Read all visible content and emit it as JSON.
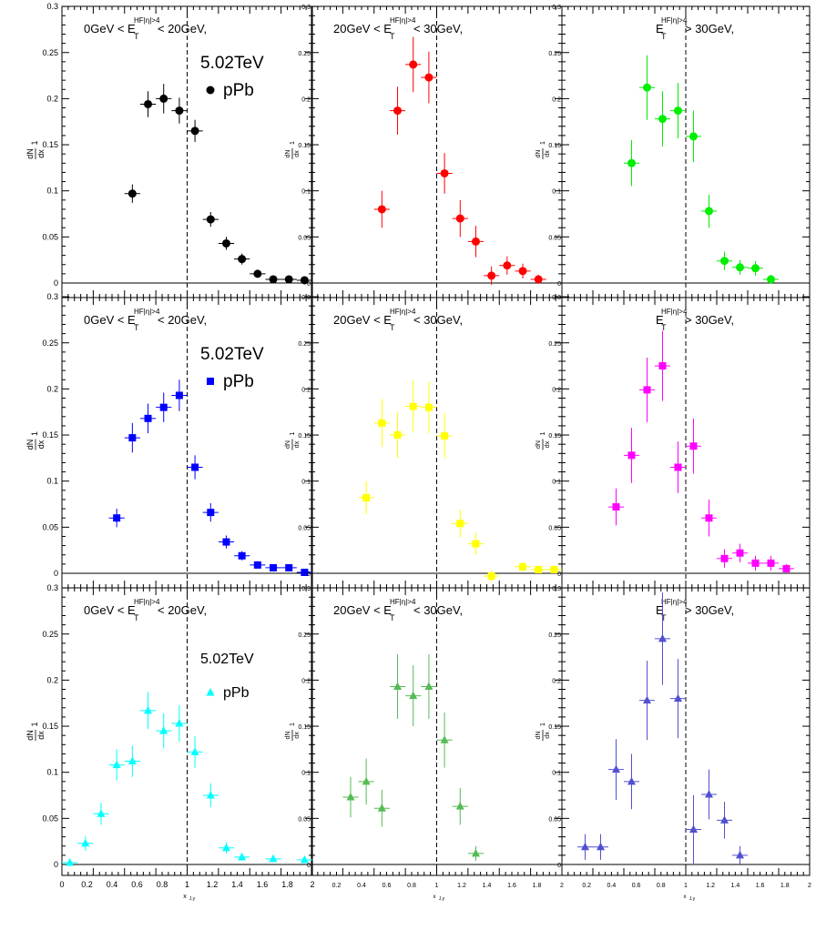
{
  "chart_data": {
    "type": "scatter",
    "layout": "3x3 grid of panels",
    "xlabel": "x",
    "xlabel_sub": "J,γ",
    "ylabel_numerator": "dN",
    "ylabel_denominator": "dx",
    "ylabel_prefix": "1",
    "ylim": [
      0,
      0.3
    ],
    "yticks": [
      "0",
      "0.05",
      "0.1",
      "0.15",
      "0.2",
      "0.25",
      "0.3"
    ],
    "xticks_left": [
      "0",
      "0.2",
      "0.4",
      "0.6",
      "0.8",
      "1",
      "1.2",
      "1.4",
      "1.6",
      "1.8",
      "2"
    ],
    "xticks_inner": [
      "0.2",
      "0.4",
      "0.6",
      "0.8",
      "1",
      "1.2",
      "1.4",
      "1.6",
      "1.8",
      "2"
    ],
    "reference_line_x": 1.0,
    "bin_halfwidth": 0.0625,
    "energy": "5.02TeV",
    "system": "pPb",
    "colors": [
      "#000000",
      "#ff0000",
      "#00ee00",
      "#0000ff",
      "#ffff00",
      "#ff00ff",
      "#00ffff",
      "#55bb55",
      "#5050d0"
    ],
    "panels": [
      {
        "row": 0,
        "col": 0,
        "color": "#000000",
        "marker": "circle",
        "label_pre": "0GeV < E",
        "label_sub": "T",
        "label_sup": "HF|η|>4",
        "label_post": "< 20GeV,",
        "x": [
          0.5625,
          0.6875,
          0.8125,
          0.9375,
          1.0625,
          1.1875,
          1.3125,
          1.4375,
          1.5625,
          1.6875,
          1.8125,
          1.9375
        ],
        "y": [
          0.097,
          0.194,
          0.2,
          0.187,
          0.165,
          0.069,
          0.043,
          0.026,
          0.01,
          0.004,
          0.004,
          0.003
        ],
        "err": [
          0.01,
          0.014,
          0.016,
          0.014,
          0.012,
          0.008,
          0.007,
          0.006,
          0.004,
          0.003,
          0.003,
          0.003
        ]
      },
      {
        "row": 0,
        "col": 1,
        "color": "#ff0000",
        "marker": "circle",
        "label_pre": "20GeV < E",
        "label_sub": "T",
        "label_sup": "HF|η|>4",
        "label_post": "< 30GeV,",
        "x": [
          0.5625,
          0.6875,
          0.8125,
          0.9375,
          1.0625,
          1.1875,
          1.3125,
          1.4375,
          1.5625,
          1.6875,
          1.8125
        ],
        "y": [
          0.08,
          0.187,
          0.237,
          0.223,
          0.119,
          0.07,
          0.045,
          0.008,
          0.019,
          0.013,
          0.004
        ],
        "err": [
          0.02,
          0.026,
          0.03,
          0.028,
          0.022,
          0.02,
          0.017,
          0.01,
          0.01,
          0.008,
          0.005
        ]
      },
      {
        "row": 0,
        "col": 2,
        "color": "#00ee00",
        "marker": "circle",
        "label_pre": "E",
        "label_sub": "T",
        "label_sup": "HF|η|>4",
        "label_post": "> 30GeV,",
        "x": [
          0.5625,
          0.6875,
          0.8125,
          0.9375,
          1.0625,
          1.1875,
          1.3125,
          1.4375,
          1.5625,
          1.6875
        ],
        "y": [
          0.13,
          0.212,
          0.178,
          0.187,
          0.159,
          0.078,
          0.024,
          0.017,
          0.016,
          0.004
        ],
        "err": [
          0.025,
          0.035,
          0.03,
          0.03,
          0.028,
          0.018,
          0.01,
          0.008,
          0.008,
          0.005
        ]
      },
      {
        "row": 1,
        "col": 0,
        "color": "#0000ff",
        "marker": "square",
        "label_pre": "0GeV < E",
        "label_sub": "T",
        "label_sup": "HF|η|>4",
        "label_post": "< 20GeV,",
        "x": [
          0.4375,
          0.5625,
          0.6875,
          0.8125,
          0.9375,
          1.0625,
          1.1875,
          1.3125,
          1.4375,
          1.5625,
          1.6875,
          1.8125,
          1.9375
        ],
        "y": [
          0.06,
          0.147,
          0.168,
          0.18,
          0.193,
          0.115,
          0.066,
          0.034,
          0.019,
          0.009,
          0.006,
          0.006,
          0.001
        ],
        "err": [
          0.01,
          0.016,
          0.016,
          0.016,
          0.017,
          0.013,
          0.01,
          0.007,
          0.005,
          0.004,
          0.003,
          0.003,
          0.002
        ]
      },
      {
        "row": 1,
        "col": 1,
        "color": "#ffff00",
        "marker": "square",
        "label_pre": "20GeV < E",
        "label_sub": "T",
        "label_sup": "HF|η|>4",
        "label_post": "< 30GeV,",
        "x": [
          0.4375,
          0.5625,
          0.6875,
          0.8125,
          0.9375,
          1.0625,
          1.1875,
          1.3125,
          1.4375,
          1.6875,
          1.8125,
          1.9375
        ],
        "y": [
          0.082,
          0.163,
          0.15,
          0.181,
          0.18,
          0.149,
          0.054,
          0.032,
          -0.003,
          0.007,
          0.004,
          0.004
        ],
        "err": [
          0.018,
          0.026,
          0.025,
          0.028,
          0.028,
          0.025,
          0.015,
          0.012,
          0.006,
          0.005,
          0.004,
          0.004
        ]
      },
      {
        "row": 1,
        "col": 2,
        "color": "#ff00ff",
        "marker": "square",
        "label_pre": "E",
        "label_sub": "T",
        "label_sup": "HF|η|>4",
        "label_post": "> 30GeV,",
        "x": [
          0.4375,
          0.5625,
          0.6875,
          0.8125,
          0.9375,
          1.0625,
          1.1875,
          1.3125,
          1.4375,
          1.5625,
          1.6875,
          1.8125
        ],
        "y": [
          0.072,
          0.128,
          0.199,
          0.225,
          0.115,
          0.138,
          0.06,
          0.016,
          0.022,
          0.011,
          0.011,
          0.005
        ],
        "err": [
          0.02,
          0.03,
          0.035,
          0.038,
          0.028,
          0.03,
          0.02,
          0.01,
          0.01,
          0.008,
          0.008,
          0.005
        ]
      },
      {
        "row": 2,
        "col": 0,
        "color": "#00ffff",
        "marker": "triangle",
        "label_pre": "0GeV < E",
        "label_sub": "T",
        "label_sup": "HF|η|>4",
        "label_post": "< 20GeV,",
        "x": [
          0.0625,
          0.1875,
          0.3125,
          0.4375,
          0.5625,
          0.6875,
          0.8125,
          0.9375,
          1.0625,
          1.1875,
          1.3125,
          1.4375,
          1.6875,
          1.9375
        ],
        "y": [
          0.002,
          0.023,
          0.055,
          0.108,
          0.112,
          0.167,
          0.145,
          0.153,
          0.122,
          0.075,
          0.018,
          0.008,
          0.006,
          0.005
        ],
        "err": [
          0.003,
          0.008,
          0.012,
          0.017,
          0.017,
          0.02,
          0.019,
          0.02,
          0.017,
          0.013,
          0.006,
          0.004,
          0.003,
          0.003
        ]
      },
      {
        "row": 2,
        "col": 1,
        "color": "#55bb55",
        "marker": "triangle",
        "label_pre": "20GeV < E",
        "label_sub": "T",
        "label_sup": "HF|η|>4",
        "label_post": "< 30GeV,",
        "x": [
          0.3125,
          0.4375,
          0.5625,
          0.6875,
          0.8125,
          0.9375,
          1.0625,
          1.1875,
          1.3125
        ],
        "y": [
          0.073,
          0.09,
          0.061,
          0.193,
          0.183,
          0.193,
          0.135,
          0.063,
          0.012
        ],
        "err": [
          0.022,
          0.025,
          0.02,
          0.035,
          0.033,
          0.035,
          0.03,
          0.02,
          0.008
        ]
      },
      {
        "row": 2,
        "col": 2,
        "color": "#5050d0",
        "marker": "triangle",
        "label_pre": "E",
        "label_sub": "T",
        "label_sup": "HF|η|>4",
        "label_post": "> 30GeV,",
        "x": [
          0.1875,
          0.3125,
          0.4375,
          0.5625,
          0.6875,
          0.8125,
          0.9375,
          1.0625,
          1.1875,
          1.3125,
          1.4375
        ],
        "y": [
          0.019,
          0.019,
          0.103,
          0.09,
          0.178,
          0.245,
          0.18,
          0.038,
          0.076,
          0.048,
          0.01
        ],
        "err": [
          0.014,
          0.014,
          0.033,
          0.03,
          0.043,
          0.05,
          0.043,
          0.037,
          0.027,
          0.02,
          0.01
        ]
      }
    ],
    "legends": [
      {
        "panel": 0,
        "energy": "5.02TeV",
        "system": "pPb",
        "marker": "circle"
      },
      {
        "panel": 3,
        "energy": "5.02TeV",
        "system": "pPb",
        "marker": "square"
      },
      {
        "panel": 6,
        "energy": "5.02TeV",
        "system": "pPb",
        "marker": "triangle"
      }
    ]
  }
}
